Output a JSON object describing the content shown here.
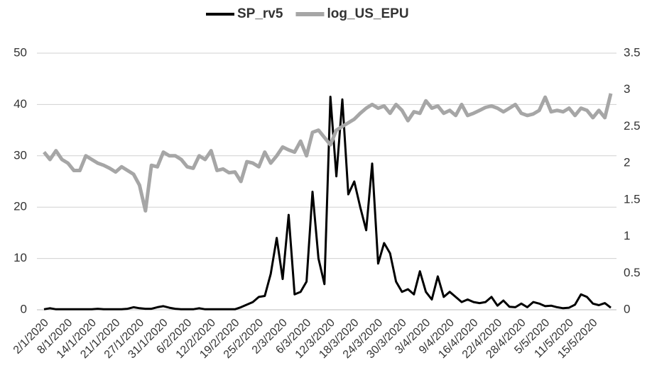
{
  "chart_data": {
    "type": "line",
    "categories": [
      "2/1/2020",
      null,
      null,
      null,
      "8/1/2020",
      null,
      null,
      null,
      "14/1/2020",
      null,
      null,
      null,
      "21/1/2020",
      null,
      null,
      null,
      "27/1/2020",
      null,
      null,
      null,
      "31/1/2020",
      null,
      null,
      null,
      "6/2/2020",
      null,
      null,
      null,
      "12/2/2020",
      null,
      null,
      null,
      "19/2/2020",
      null,
      null,
      null,
      "25/2/2020",
      null,
      null,
      null,
      "2/3/2020",
      null,
      null,
      null,
      "6/3/2020",
      null,
      null,
      null,
      "12/3/2020",
      null,
      null,
      null,
      "18/3/2020",
      null,
      null,
      null,
      "24/3/2020",
      null,
      null,
      null,
      "30/3/2020",
      null,
      null,
      null,
      "3/4/2020",
      null,
      null,
      null,
      "9/4/2020",
      null,
      null,
      null,
      "16/4/2020",
      null,
      null,
      null,
      "22/4/2020",
      null,
      null,
      null,
      "28/4/2020",
      null,
      null,
      null,
      "5/5/2020",
      null,
      null,
      null,
      "11/5/2020",
      null,
      null,
      null,
      "15/5/2020",
      null,
      null,
      null
    ],
    "series": [
      {
        "name": "SP_rv5",
        "color": "#000000",
        "values": [
          0.1,
          0.3,
          0.1,
          0.1,
          0.1,
          0.1,
          0.1,
          0.1,
          0.1,
          0.2,
          0.1,
          0.1,
          0.1,
          0.1,
          0.2,
          0.5,
          0.3,
          0.2,
          0.2,
          0.5,
          0.7,
          0.4,
          0.2,
          0.1,
          0.1,
          0.1,
          0.3,
          0.1,
          0.1,
          0.1,
          0.1,
          0.1,
          0.1,
          0.5,
          1,
          1.5,
          2.5,
          2.7,
          7,
          14,
          6,
          18.5,
          3,
          3.5,
          5.5,
          23,
          10,
          5,
          41.5,
          26,
          41,
          22.5,
          25,
          20,
          15.5,
          28.5,
          9,
          13,
          11,
          5.5,
          3.5,
          4,
          3,
          7.5,
          3.5,
          2,
          6.5,
          2.5,
          3.5,
          2.5,
          1.5,
          2,
          1.5,
          1.3,
          1.5,
          2.5,
          0.8,
          1.8,
          0.6,
          0.5,
          1.2,
          0.5,
          1.5,
          1.2,
          0.7,
          0.8,
          0.5,
          0.3,
          0.4,
          1,
          3,
          2.5,
          1.2,
          0.9,
          1.3,
          0.4
        ]
      },
      {
        "name": "log_US_EPU",
        "color": "#a6a6a6",
        "axis": "y2",
        "values": [
          2.15,
          2.05,
          2.17,
          2.05,
          2.0,
          1.9,
          1.9,
          2.1,
          2.05,
          2.0,
          1.97,
          1.93,
          1.88,
          1.95,
          1.9,
          1.85,
          1.7,
          1.35,
          1.97,
          1.95,
          2.15,
          2.1,
          2.1,
          2.05,
          1.95,
          1.93,
          2.1,
          2.05,
          2.17,
          1.9,
          1.92,
          1.87,
          1.88,
          1.75,
          2.02,
          2.0,
          1.95,
          2.15,
          2.0,
          2.1,
          2.22,
          2.18,
          2.15,
          2.3,
          2.1,
          2.42,
          2.45,
          2.35,
          2.25,
          2.45,
          2.5,
          2.55,
          2.6,
          2.68,
          2.75,
          2.8,
          2.75,
          2.78,
          2.68,
          2.8,
          2.72,
          2.58,
          2.7,
          2.68,
          2.85,
          2.75,
          2.78,
          2.68,
          2.72,
          2.65,
          2.8,
          2.65,
          2.68,
          2.72,
          2.76,
          2.78,
          2.75,
          2.7,
          2.75,
          2.8,
          2.68,
          2.65,
          2.67,
          2.72,
          2.9,
          2.7,
          2.72,
          2.7,
          2.75,
          2.65,
          2.75,
          2.72,
          2.62,
          2.72,
          2.62,
          2.95
        ]
      }
    ],
    "ylim": [
      0,
      50
    ],
    "yticks": [
      0,
      10,
      20,
      30,
      40,
      50
    ],
    "y2lim": [
      0,
      3.5
    ],
    "y2ticks": [
      0,
      0.5,
      1,
      1.5,
      2,
      2.5,
      3,
      3.5
    ],
    "grid": true,
    "legend": "top"
  }
}
